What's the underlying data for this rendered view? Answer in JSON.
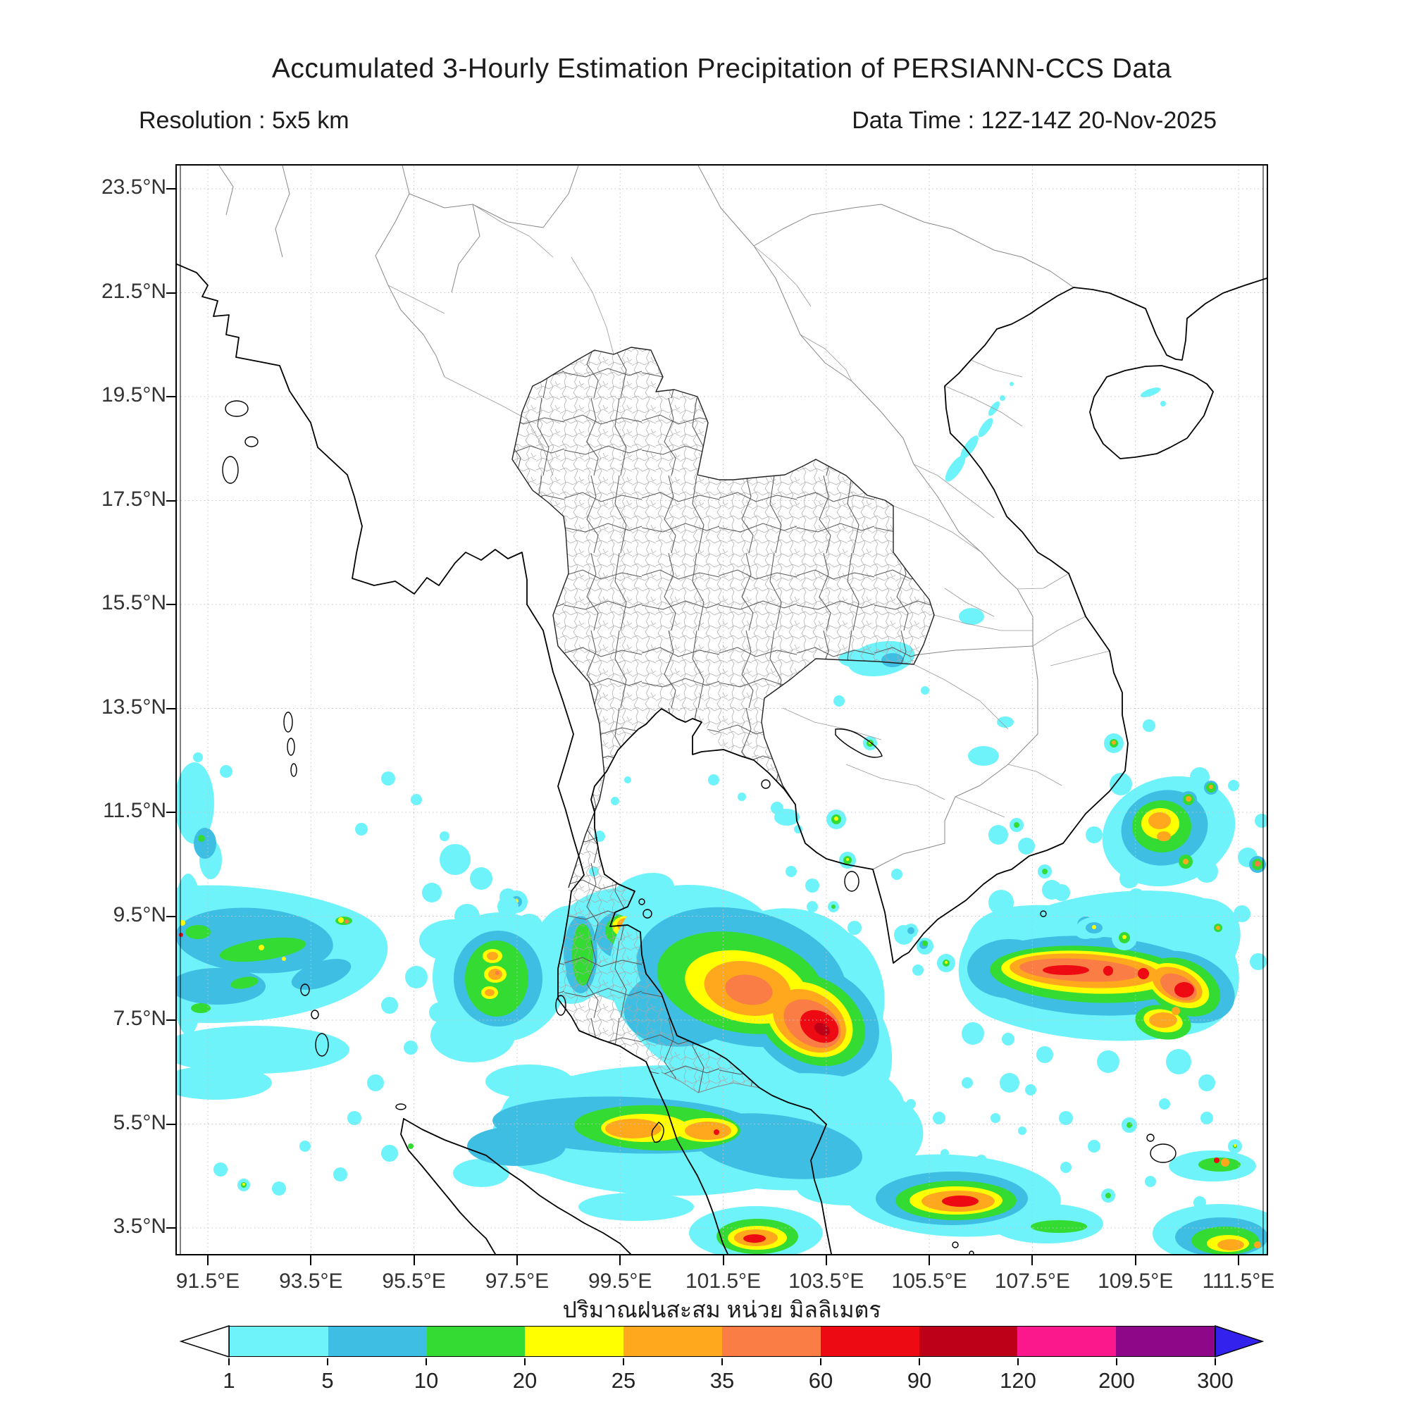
{
  "header": {
    "title": "Accumulated 3-Hourly Estimation Precipitation of PERSIANN-CCS Data",
    "resolution_label": "Resolution : 5x5 km",
    "data_time_label": "Data Time : 12Z-14Z 20-Nov-2025"
  },
  "map": {
    "lat_tick_labels": [
      "23.5°N",
      "21.5°N",
      "19.5°N",
      "17.5°N",
      "15.5°N",
      "13.5°N",
      "11.5°N",
      "9.5°N",
      "7.5°N",
      "5.5°N",
      "3.5°N"
    ],
    "lon_tick_labels": [
      "91.5°E",
      "93.5°E",
      "95.5°E",
      "97.5°E",
      "99.5°E",
      "101.5°E",
      "103.5°E",
      "105.5°E",
      "107.5°E",
      "109.5°E",
      "111.5°E"
    ],
    "caption_thai": "ปริมาณฝนสะสม หน่วย มิลลิเมตร"
  },
  "colorbar": {
    "tick_labels": [
      "1",
      "5",
      "10",
      "20",
      "25",
      "35",
      "60",
      "90",
      "120",
      "200",
      "300"
    ],
    "segment_colors": [
      "#6EF3FB",
      "#3FBEE3",
      "#33DB33",
      "#FFFF00",
      "#FFA81E",
      "#F97D45",
      "#EE0A12",
      "#BD0018",
      "#FB188C",
      "#8E0788"
    ],
    "under_arrow_color": "#FFFFFF",
    "over_arrow_color": "#3322EE"
  }
}
